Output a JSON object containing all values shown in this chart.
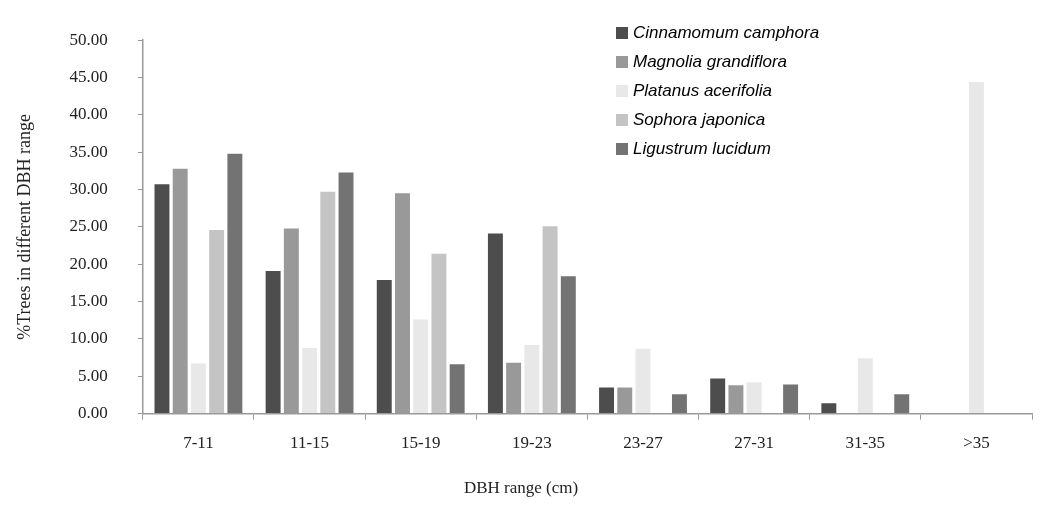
{
  "chart_data": {
    "type": "bar",
    "xlabel": "DBH range (cm)",
    "ylabel": "%Trees in different DBH range",
    "categories": [
      "7-11",
      "11-15",
      "15-19",
      "19-23",
      "23-27",
      "27-31",
      "31-35",
      ">35"
    ],
    "series": [
      {
        "name": "Cinnamomum camphora",
        "color": "#4d4d4d",
        "values": [
          30.7,
          19.1,
          17.9,
          24.1,
          3.5,
          4.7,
          1.4,
          0
        ]
      },
      {
        "name": "Magnolia grandiflora",
        "color": "#999999",
        "values": [
          32.8,
          24.8,
          29.5,
          6.8,
          3.5,
          3.8,
          0,
          0
        ]
      },
      {
        "name": "Platanus acerifolia",
        "color": "#e8e8e8",
        "values": [
          6.7,
          8.8,
          12.6,
          9.2,
          8.7,
          4.2,
          7.4,
          44.4
        ]
      },
      {
        "name": "Sophora japonica",
        "color": "#c4c4c4",
        "values": [
          24.6,
          29.7,
          21.4,
          25.1,
          0,
          0,
          0,
          0
        ]
      },
      {
        "name": "Ligustrum lucidum",
        "color": "#737373",
        "values": [
          34.8,
          32.3,
          6.6,
          18.4,
          2.6,
          3.9,
          2.6,
          0
        ]
      }
    ],
    "ylim": [
      0,
      50
    ],
    "yticks": [
      {
        "value": 0,
        "label": "0.00"
      },
      {
        "value": 5,
        "label": "5.00"
      },
      {
        "value": 10,
        "label": "10.00"
      },
      {
        "value": 15,
        "label": "15.00"
      },
      {
        "value": 20,
        "label": "20.00"
      },
      {
        "value": 25,
        "label": "25.00"
      },
      {
        "value": 30,
        "label": "30.00"
      },
      {
        "value": 35,
        "label": "35.00"
      },
      {
        "value": 40,
        "label": "40.00"
      },
      {
        "value": 45,
        "label": "45.00"
      },
      {
        "value": 50,
        "label": "50.00"
      }
    ],
    "grid": false,
    "legend": "top right"
  }
}
